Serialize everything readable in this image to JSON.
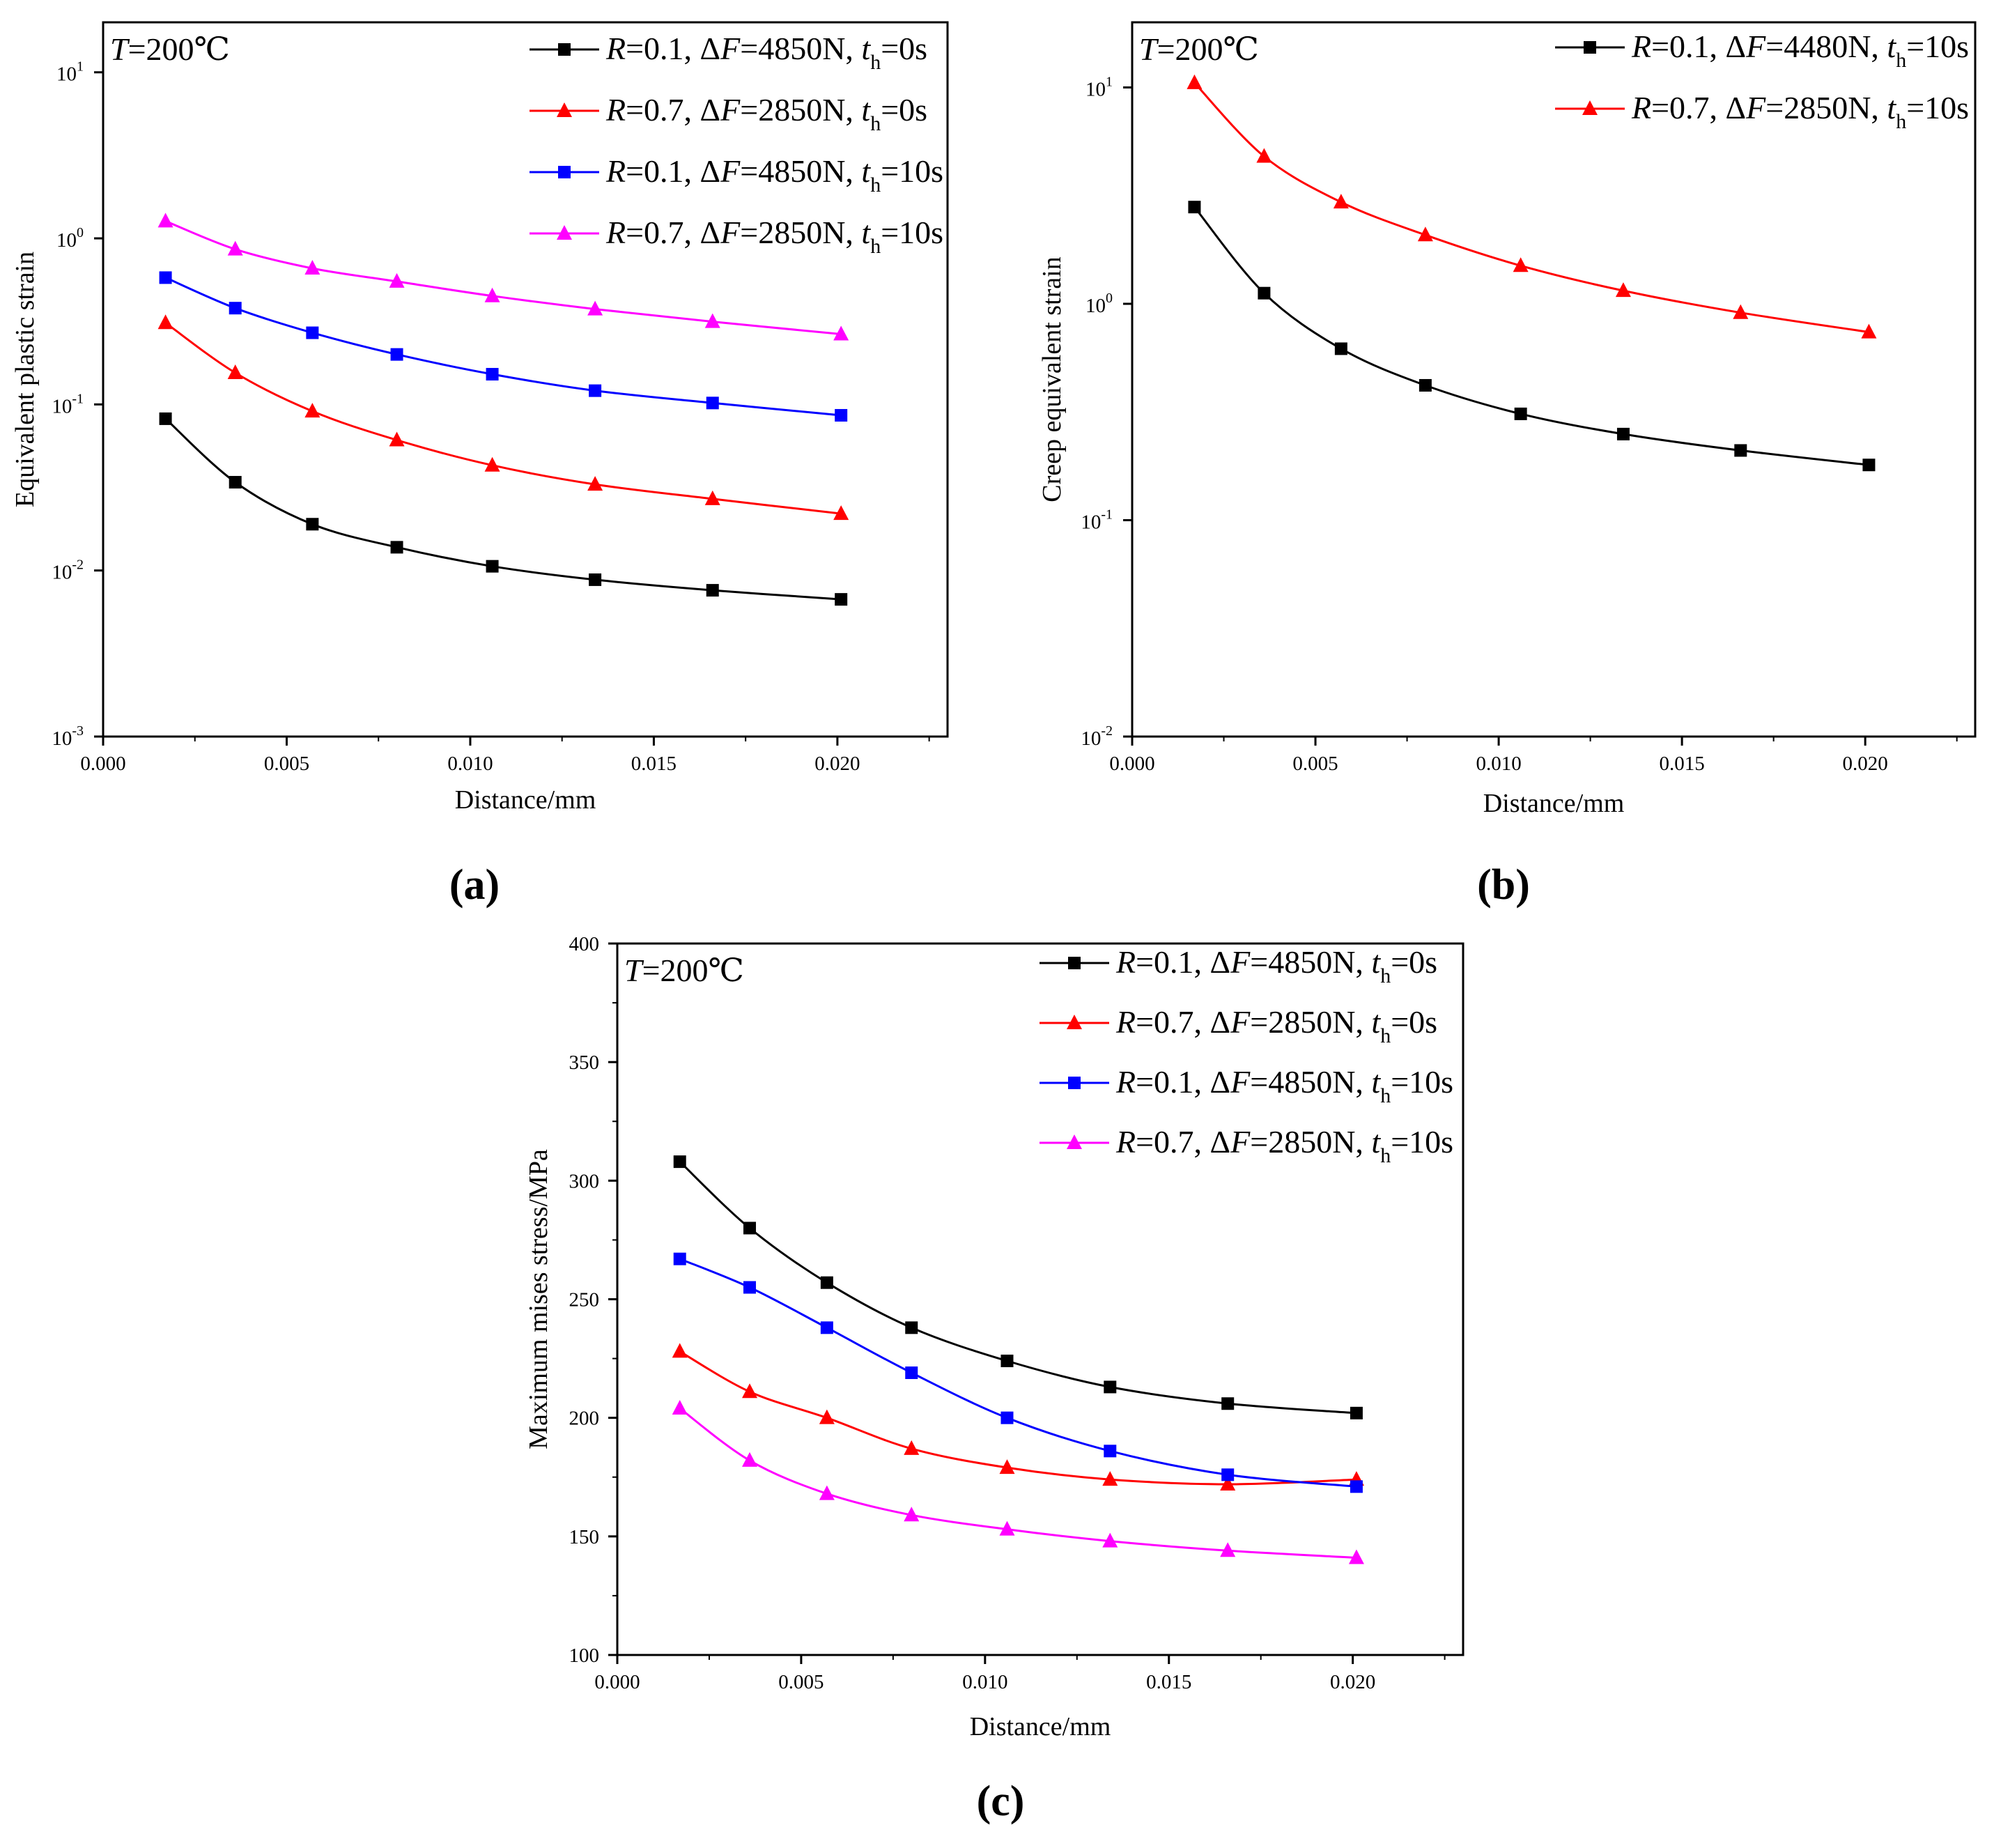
{
  "figure_labels": [
    "(a)",
    "(b)",
    "(c)"
  ],
  "chart_data": [
    {
      "id": "a",
      "type": "line",
      "y_scale": "log",
      "xlabel": "Distance/mm",
      "ylabel": "Equivalent plastic strain",
      "xlim": [
        0.0,
        0.023
      ],
      "ylim": [
        0.001,
        20
      ],
      "x_ticks": [
        0.0,
        0.005,
        0.01,
        0.015,
        0.02
      ],
      "x_tick_labels": [
        "0.000",
        "0.005",
        "0.010",
        "0.015",
        "0.020"
      ],
      "y_ticks": [
        0.001,
        0.01,
        0.1,
        1,
        10
      ],
      "y_tick_labels": [
        {
          "base": "10",
          "exp": "-3"
        },
        {
          "base": "10",
          "exp": "-2"
        },
        {
          "base": "10",
          "exp": "-1"
        },
        {
          "base": "10",
          "exp": "0"
        },
        {
          "base": "10",
          "exp": "1"
        }
      ],
      "annotation": {
        "var": "T",
        "text": "=200℃"
      },
      "legend_position": "top-right",
      "x": [
        0.0017,
        0.0036,
        0.0057,
        0.008,
        0.0106,
        0.0134,
        0.0166,
        0.0201
      ],
      "series": [
        {
          "legend": {
            "r": "0.1",
            "df": "4850N",
            "th": "0s"
          },
          "color": "#000000",
          "marker": "square",
          "values": [
            0.082,
            0.034,
            0.019,
            0.0138,
            0.0106,
            0.0088,
            0.0076,
            0.0067
          ]
        },
        {
          "legend": {
            "r": "0.7",
            "df": "2850N",
            "th": "0s"
          },
          "color": "#ff0000",
          "marker": "triangle",
          "values": [
            0.31,
            0.155,
            0.091,
            0.061,
            0.043,
            0.033,
            0.027,
            0.022
          ]
        },
        {
          "legend": {
            "r": "0.1",
            "df": "4850N",
            "th": "10s"
          },
          "color": "#0000ff",
          "marker": "square",
          "values": [
            0.58,
            0.38,
            0.27,
            0.2,
            0.152,
            0.121,
            0.102,
            0.086
          ]
        },
        {
          "legend": {
            "r": "0.7",
            "df": "2850N",
            "th": "10s"
          },
          "color": "#ff00ff",
          "marker": "triangle",
          "values": [
            1.27,
            0.86,
            0.66,
            0.55,
            0.45,
            0.375,
            0.315,
            0.265
          ]
        }
      ]
    },
    {
      "id": "b",
      "type": "line",
      "y_scale": "log",
      "xlabel": "Distance/mm",
      "ylabel": "Creep equivalent strain",
      "xlim": [
        0.0,
        0.023
      ],
      "ylim": [
        0.01,
        20
      ],
      "x_ticks": [
        0.0,
        0.005,
        0.01,
        0.015,
        0.02
      ],
      "x_tick_labels": [
        "0.000",
        "0.005",
        "0.010",
        "0.015",
        "0.020"
      ],
      "y_ticks": [
        0.01,
        0.1,
        1,
        10
      ],
      "y_tick_labels": [
        {
          "base": "10",
          "exp": "-2"
        },
        {
          "base": "10",
          "exp": "-1"
        },
        {
          "base": "10",
          "exp": "0"
        },
        {
          "base": "10",
          "exp": "1"
        }
      ],
      "annotation": {
        "var": "T",
        "text": "=200℃"
      },
      "legend_position": "top-right",
      "x": [
        0.0017,
        0.0036,
        0.0057,
        0.008,
        0.0106,
        0.0134,
        0.0166,
        0.0201
      ],
      "series": [
        {
          "legend": {
            "r": "0.1",
            "df": "4480N",
            "th": "10s"
          },
          "color": "#000000",
          "marker": "square",
          "values": [
            2.8,
            1.12,
            0.62,
            0.42,
            0.31,
            0.25,
            0.21,
            0.18
          ]
        },
        {
          "legend": {
            "r": "0.7",
            "df": "2850N",
            "th": "10s"
          },
          "color": "#ff0000",
          "marker": "triangle",
          "values": [
            10.5,
            4.8,
            2.95,
            2.08,
            1.5,
            1.15,
            0.91,
            0.74
          ]
        }
      ]
    },
    {
      "id": "c",
      "type": "line",
      "y_scale": "linear",
      "xlabel": "Distance/mm",
      "ylabel": "Maximum mises stress/MPa",
      "xlim": [
        0.0,
        0.023
      ],
      "ylim": [
        100,
        400
      ],
      "x_ticks": [
        0.0,
        0.005,
        0.01,
        0.015,
        0.02
      ],
      "x_tick_labels": [
        "0.000",
        "0.005",
        "0.010",
        "0.015",
        "0.020"
      ],
      "y_ticks": [
        100,
        150,
        200,
        250,
        300,
        350,
        400
      ],
      "y_tick_labels": [
        "100",
        "150",
        "200",
        "250",
        "300",
        "350",
        "400"
      ],
      "annotation": {
        "var": "T",
        "text": "=200℃"
      },
      "legend_position": "top-right",
      "x": [
        0.0017,
        0.0036,
        0.0057,
        0.008,
        0.0106,
        0.0134,
        0.0166,
        0.0201
      ],
      "series": [
        {
          "legend": {
            "r": "0.1",
            "df": "4850N",
            "th": "0s"
          },
          "color": "#000000",
          "marker": "square",
          "values": [
            308,
            280,
            257,
            238,
            224,
            213,
            206,
            202
          ]
        },
        {
          "legend": {
            "r": "0.7",
            "df": "2850N",
            "th": "0s"
          },
          "color": "#ff0000",
          "marker": "triangle",
          "values": [
            228,
            211,
            200,
            187,
            179,
            174,
            172,
            174
          ]
        },
        {
          "legend": {
            "r": "0.1",
            "df": "4850N",
            "th": "10s"
          },
          "color": "#0000ff",
          "marker": "square",
          "values": [
            267,
            255,
            238,
            219,
            200,
            186,
            176,
            171
          ]
        },
        {
          "legend": {
            "r": "0.7",
            "df": "2850N",
            "th": "10s"
          },
          "color": "#ff00ff",
          "marker": "triangle",
          "values": [
            204,
            182,
            168,
            159,
            153,
            148,
            144,
            141
          ]
        }
      ]
    }
  ]
}
